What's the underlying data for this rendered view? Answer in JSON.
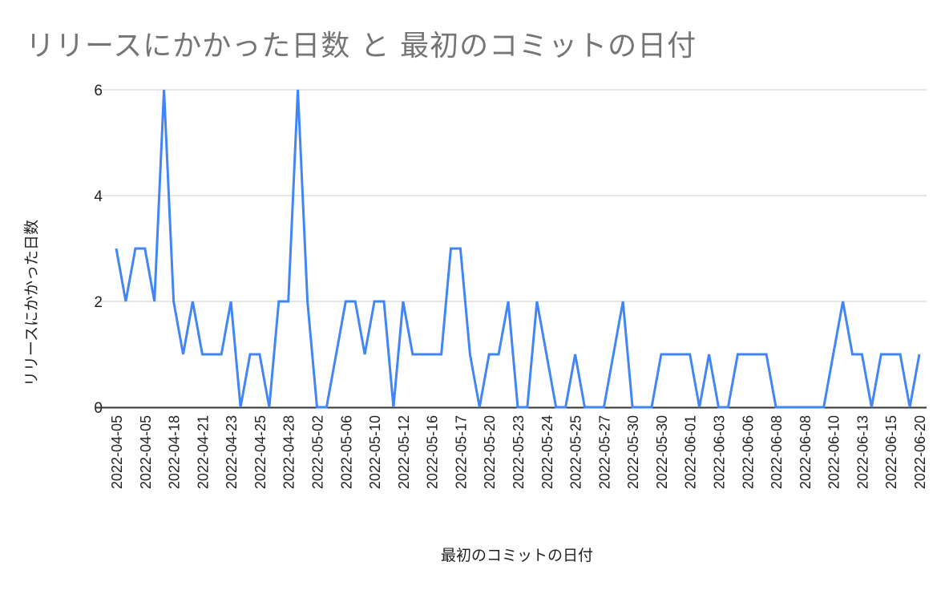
{
  "chart_data": {
    "type": "line",
    "title": "リリースにかかった日数 と 最初のコミットの日付",
    "xlabel": "最初のコミットの日付",
    "ylabel": "リリースにかかった日数",
    "ylim": [
      0,
      6
    ],
    "yticks": [
      0,
      2,
      4,
      6
    ],
    "grid": true,
    "legend": "none",
    "series": [
      {
        "name": "リリースにかかった日数",
        "color": "#4285F4",
        "values": [
          3,
          2,
          3,
          3,
          2,
          6,
          2,
          1,
          2,
          1,
          1,
          1,
          2,
          0,
          1,
          1,
          0,
          2,
          2,
          6,
          2,
          0,
          0,
          1,
          2,
          2,
          1,
          2,
          2,
          0,
          2,
          1,
          1,
          1,
          1,
          3,
          3,
          1,
          0,
          1,
          1,
          2,
          0,
          0,
          2,
          1,
          0,
          0,
          1,
          0,
          0,
          0,
          1,
          2,
          0,
          0,
          0,
          1,
          1,
          1,
          1,
          0,
          1,
          0,
          0,
          1,
          1,
          1,
          1,
          0,
          0,
          0,
          0,
          0,
          0,
          1,
          2,
          1,
          1,
          0,
          1,
          1,
          1,
          0,
          1
        ]
      }
    ],
    "x_tick_labels": [
      "2022-04-05",
      "2022-04-05",
      "2022-04-18",
      "2022-04-21",
      "2022-04-23",
      "2022-04-25",
      "2022-04-28",
      "2022-05-02",
      "2022-05-06",
      "2022-05-10",
      "2022-05-12",
      "2022-05-16",
      "2022-05-17",
      "2022-05-20",
      "2022-05-23",
      "2022-05-24",
      "2022-05-25",
      "2022-05-27",
      "2022-05-30",
      "2022-05-30",
      "2022-06-01",
      "2022-06-03",
      "2022-06-06",
      "2022-06-08",
      "2022-06-08",
      "2022-06-10",
      "2022-06-13",
      "2022-06-15",
      "2022-06-20"
    ],
    "x_tick_every": 3
  },
  "colors": {
    "line": "#4285F4",
    "grid": "#cccccc",
    "axis": "#333333",
    "title": "#757575",
    "text": "#222222"
  }
}
